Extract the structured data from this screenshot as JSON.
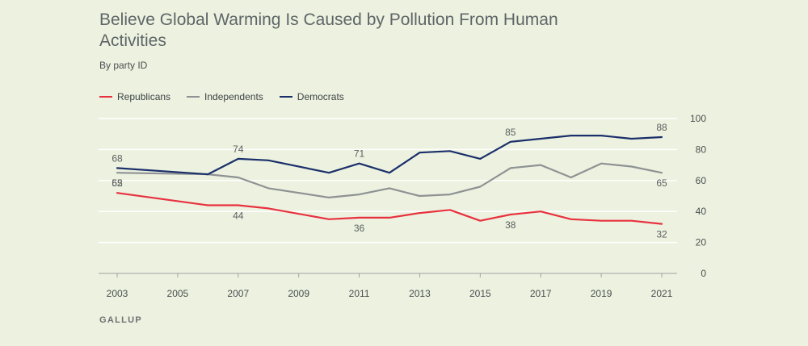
{
  "chart_data": {
    "type": "line",
    "title": "Believe Global Warming Is Caused by Pollution From Human Activities",
    "subtitle": "By party ID",
    "source": "GALLUP",
    "ylim": [
      0,
      100
    ],
    "yticks": [
      0,
      20,
      40,
      60,
      80,
      100
    ],
    "xticks": [
      2003,
      2005,
      2007,
      2009,
      2011,
      2013,
      2015,
      2017,
      2019,
      2021
    ],
    "x": [
      2003,
      2006,
      2007,
      2008,
      2010,
      2011,
      2012,
      2013,
      2014,
      2015,
      2016,
      2017,
      2018,
      2019,
      2020,
      2021
    ],
    "series": [
      {
        "name": "Republicans",
        "color": "#e8313f",
        "values": [
          52,
          44,
          44,
          42,
          35,
          36,
          36,
          39,
          41,
          34,
          38,
          40,
          35,
          34,
          34,
          32
        ],
        "labels": [
          {
            "x": 2003,
            "text": "52",
            "pos": "above"
          },
          {
            "x": 2007,
            "text": "44",
            "pos": "below"
          },
          {
            "x": 2011,
            "text": "36",
            "pos": "below"
          },
          {
            "x": 2016,
            "text": "38",
            "pos": "below"
          },
          {
            "x": 2021,
            "text": "32",
            "pos": "below"
          }
        ]
      },
      {
        "name": "Independents",
        "color": "#8e9294",
        "values": [
          65,
          64,
          62,
          55,
          49,
          51,
          55,
          50,
          51,
          56,
          68,
          70,
          62,
          71,
          69,
          65
        ],
        "labels": [
          {
            "x": 2003,
            "text": "65",
            "pos": "below"
          },
          {
            "x": 2021,
            "text": "65",
            "pos": "below"
          }
        ]
      },
      {
        "name": "Democrats",
        "color": "#1b2f6b",
        "values": [
          68,
          64,
          74,
          73,
          65,
          71,
          65,
          78,
          79,
          74,
          85,
          87,
          89,
          89,
          87,
          88
        ],
        "labels": [
          {
            "x": 2003,
            "text": "68",
            "pos": "above"
          },
          {
            "x": 2007,
            "text": "74",
            "pos": "above"
          },
          {
            "x": 2011,
            "text": "71",
            "pos": "above"
          },
          {
            "x": 2016,
            "text": "85",
            "pos": "above"
          },
          {
            "x": 2021,
            "text": "88",
            "pos": "above"
          }
        ]
      }
    ]
  }
}
